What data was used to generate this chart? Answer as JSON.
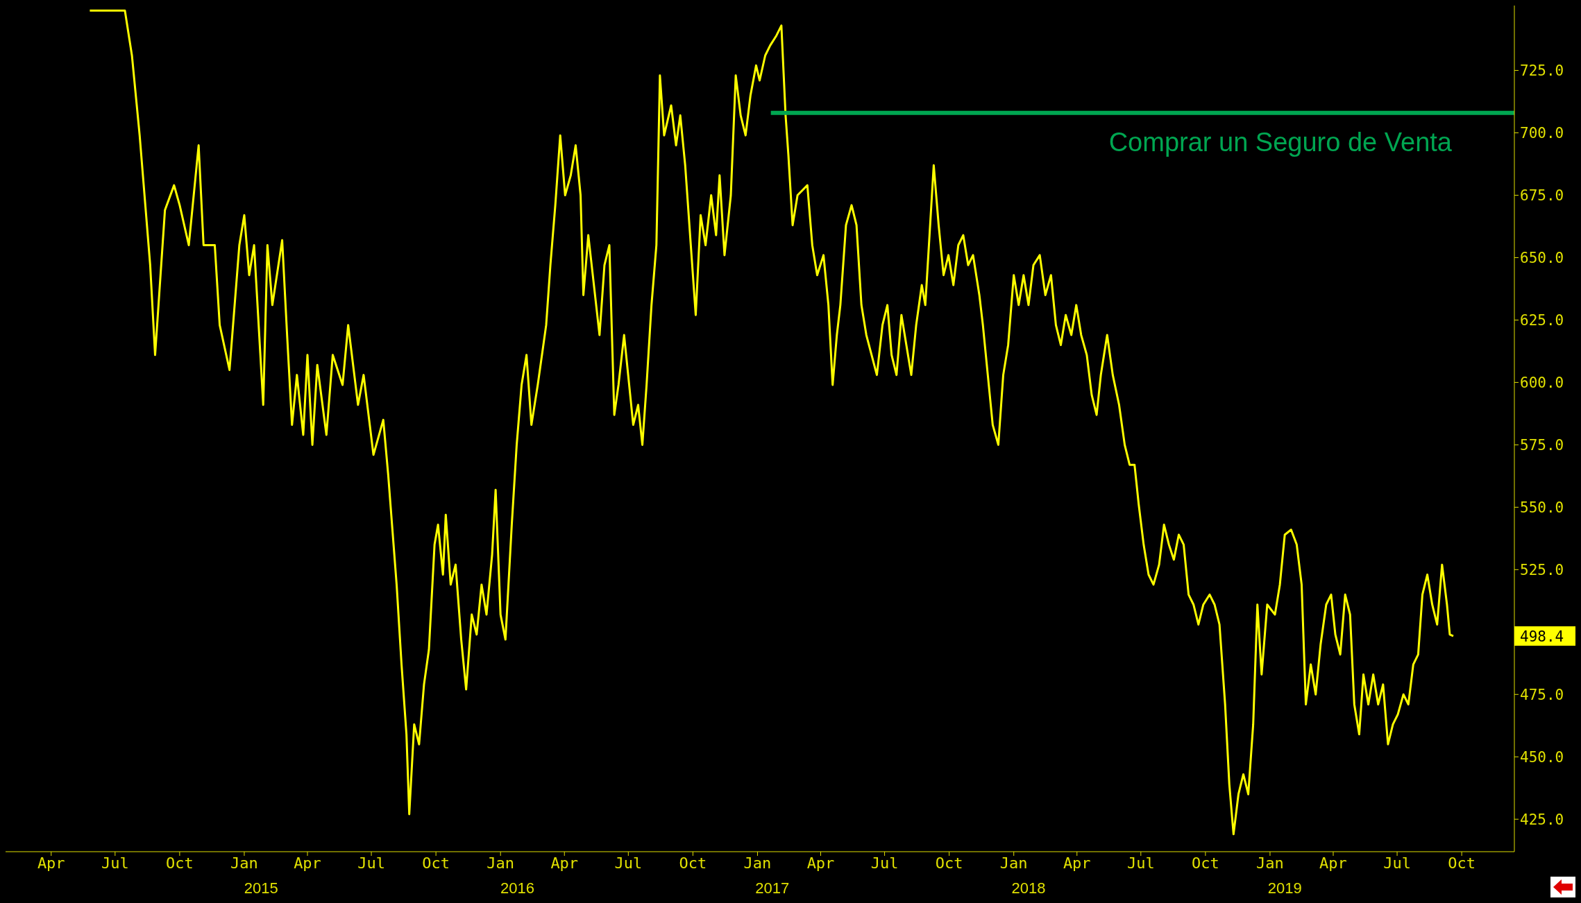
{
  "chart_data": {
    "type": "line",
    "grid": false,
    "legend": false,
    "marker": "none",
    "xlim": [
      "2014-01-26",
      "2019-12-15"
    ],
    "ylim": [
      412,
      751
    ],
    "yticks": [
      {
        "value": 425,
        "label": "425.0"
      },
      {
        "value": 450,
        "label": "450.0"
      },
      {
        "value": 475,
        "label": "475.0"
      },
      {
        "value": 525,
        "label": "525.0"
      },
      {
        "value": 550,
        "label": "550.0"
      },
      {
        "value": 575,
        "label": "575.0"
      },
      {
        "value": 600,
        "label": "600.0"
      },
      {
        "value": 625,
        "label": "625.0"
      },
      {
        "value": 650,
        "label": "650.0"
      },
      {
        "value": 675,
        "label": "675.0"
      },
      {
        "value": 700,
        "label": "700.0"
      },
      {
        "value": 725,
        "label": "725.0"
      }
    ],
    "xticks": [
      {
        "value": "2014-04-01",
        "label": "Apr"
      },
      {
        "value": "2014-07-01",
        "label": "Jul"
      },
      {
        "value": "2014-10-01",
        "label": "Oct"
      },
      {
        "value": "2015-01-01",
        "label": "Jan"
      },
      {
        "value": "2015-04-01",
        "label": "Apr"
      },
      {
        "value": "2015-07-01",
        "label": "Jul"
      },
      {
        "value": "2015-10-01",
        "label": "Oct"
      },
      {
        "value": "2016-01-01",
        "label": "Jan"
      },
      {
        "value": "2016-04-01",
        "label": "Apr"
      },
      {
        "value": "2016-07-01",
        "label": "Jul"
      },
      {
        "value": "2016-10-01",
        "label": "Oct"
      },
      {
        "value": "2017-01-01",
        "label": "Jan"
      },
      {
        "value": "2017-04-01",
        "label": "Apr"
      },
      {
        "value": "2017-07-01",
        "label": "Jul"
      },
      {
        "value": "2017-10-01",
        "label": "Oct"
      },
      {
        "value": "2018-01-01",
        "label": "Jan"
      },
      {
        "value": "2018-04-01",
        "label": "Apr"
      },
      {
        "value": "2018-07-01",
        "label": "Jul"
      },
      {
        "value": "2018-10-01",
        "label": "Oct"
      },
      {
        "value": "2019-01-01",
        "label": "Jan"
      },
      {
        "value": "2019-04-01",
        "label": "Apr"
      },
      {
        "value": "2019-07-01",
        "label": "Jul"
      },
      {
        "value": "2019-10-01",
        "label": "Oct"
      }
    ],
    "x2lim": [
      "2014-01-26",
      "2019-12-15"
    ],
    "x2ticks": [
      {
        "value": "2015-01-25",
        "label": "2015"
      },
      {
        "value": "2016-01-25",
        "label": "2016"
      },
      {
        "value": "2017-01-22",
        "label": "2017"
      },
      {
        "value": "2018-01-22",
        "label": "2018"
      },
      {
        "value": "2019-01-22",
        "label": "2019"
      }
    ],
    "annotations": [
      "498.4"
    ],
    "series": [
      {
        "color": "#ffff00",
        "x": [
          "2014-05-26",
          "2014-07-15",
          "2014-07-25",
          "2014-08-05",
          "2014-08-20",
          "2014-08-27",
          "2014-09-10",
          "2014-09-23",
          "2014-10-01",
          "2014-10-14",
          "2014-10-28",
          "2014-11-04",
          "2014-11-20",
          "2014-11-27",
          "2014-12-11",
          "2014-12-25",
          "2015-01-01",
          "2015-01-08",
          "2015-01-15",
          "2015-01-28",
          "2015-02-03",
          "2015-02-10",
          "2015-02-24",
          "2015-03-03",
          "2015-03-10",
          "2015-03-17",
          "2015-03-26",
          "2015-04-01",
          "2015-04-08",
          "2015-04-15",
          "2015-04-28",
          "2015-05-07",
          "2015-05-21",
          "2015-05-29",
          "2015-06-12",
          "2015-06-20",
          "2015-07-04",
          "2015-07-18",
          "2015-07-25",
          "2015-08-06",
          "2015-08-13",
          "2015-08-20",
          "2015-08-24",
          "2015-08-31",
          "2015-09-07",
          "2015-09-14",
          "2015-09-21",
          "2015-09-29",
          "2015-10-04",
          "2015-10-11",
          "2015-10-15",
          "2015-10-22",
          "2015-10-29",
          "2015-11-06",
          "2015-11-13",
          "2015-11-21",
          "2015-11-28",
          "2015-12-05",
          "2015-12-12",
          "2015-12-20",
          "2015-12-25",
          "2016-01-01",
          "2016-01-08",
          "2016-01-17",
          "2016-01-24",
          "2016-01-31",
          "2016-02-07",
          "2016-02-14",
          "2016-02-23",
          "2016-03-06",
          "2016-03-12",
          "2016-03-19",
          "2016-03-26",
          "2016-04-02",
          "2016-04-10",
          "2016-04-17",
          "2016-04-24",
          "2016-04-28",
          "2016-05-05",
          "2016-05-21",
          "2016-05-28",
          "2016-06-04",
          "2016-06-11",
          "2016-06-17",
          "2016-06-25",
          "2016-07-08",
          "2016-07-15",
          "2016-07-21",
          "2016-07-27",
          "2016-08-03",
          "2016-08-10",
          "2016-08-15",
          "2016-08-21",
          "2016-08-31",
          "2016-09-07",
          "2016-09-13",
          "2016-09-20",
          "2016-09-29",
          "2016-10-05",
          "2016-10-12",
          "2016-10-19",
          "2016-10-27",
          "2016-11-03",
          "2016-11-08",
          "2016-11-15",
          "2016-11-24",
          "2016-12-01",
          "2016-12-08",
          "2016-12-15",
          "2016-12-22",
          "2016-12-30",
          "2017-01-04",
          "2017-01-12",
          "2017-01-19",
          "2017-01-28",
          "2017-02-04",
          "2017-02-10",
          "2017-02-14",
          "2017-02-20",
          "2017-02-27",
          "2017-03-13",
          "2017-03-20",
          "2017-03-27",
          "2017-04-05",
          "2017-04-12",
          "2017-04-18",
          "2017-04-24",
          "2017-04-29",
          "2017-05-07",
          "2017-05-15",
          "2017-05-22",
          "2017-05-29",
          "2017-06-05",
          "2017-06-20",
          "2017-06-28",
          "2017-07-05",
          "2017-07-11",
          "2017-07-18",
          "2017-07-25",
          "2017-08-01",
          "2017-08-08",
          "2017-08-15",
          "2017-08-23",
          "2017-08-28",
          "2017-09-03",
          "2017-09-09",
          "2017-09-16",
          "2017-09-23",
          "2017-09-30",
          "2017-10-07",
          "2017-10-14",
          "2017-10-21",
          "2017-10-28",
          "2017-11-04",
          "2017-11-13",
          "2017-11-18",
          "2017-11-25",
          "2017-12-02",
          "2017-12-10",
          "2017-12-17",
          "2017-12-24",
          "2018-01-01",
          "2018-01-08",
          "2018-01-15",
          "2018-01-22",
          "2018-01-29",
          "2018-02-07",
          "2018-02-15",
          "2018-02-23",
          "2018-03-02",
          "2018-03-09",
          "2018-03-16",
          "2018-03-24",
          "2018-03-31",
          "2018-04-07",
          "2018-04-15",
          "2018-04-22",
          "2018-04-29",
          "2018-05-05",
          "2018-05-14",
          "2018-05-22",
          "2018-05-31",
          "2018-06-08",
          "2018-06-15",
          "2018-06-22",
          "2018-06-28",
          "2018-07-05",
          "2018-07-12",
          "2018-07-19",
          "2018-07-27",
          "2018-08-03",
          "2018-08-10",
          "2018-08-17",
          "2018-08-24",
          "2018-08-31",
          "2018-09-07",
          "2018-09-14",
          "2018-09-21",
          "2018-09-28",
          "2018-10-07",
          "2018-10-14",
          "2018-10-21",
          "2018-10-29",
          "2018-11-04",
          "2018-11-10",
          "2018-11-17",
          "2018-11-24",
          "2018-12-01",
          "2018-12-08",
          "2018-12-14",
          "2018-12-20",
          "2018-12-28",
          "2019-01-08",
          "2019-01-15",
          "2019-01-22",
          "2019-01-31",
          "2019-02-08",
          "2019-02-15",
          "2019-02-21",
          "2019-02-28",
          "2019-03-07",
          "2019-03-14",
          "2019-03-22",
          "2019-03-29",
          "2019-04-04",
          "2019-04-11",
          "2019-04-18",
          "2019-04-25",
          "2019-05-01",
          "2019-05-08",
          "2019-05-14",
          "2019-05-21",
          "2019-05-28",
          "2019-06-04",
          "2019-06-11",
          "2019-06-18",
          "2019-06-25",
          "2019-07-02",
          "2019-07-10",
          "2019-07-17",
          "2019-07-24",
          "2019-07-31",
          "2019-08-06",
          "2019-08-13",
          "2019-08-20",
          "2019-08-27",
          "2019-09-03",
          "2019-09-10",
          "2019-09-14",
          "2019-09-19"
        ],
        "values": [
          749,
          749,
          731,
          699,
          647,
          611,
          669,
          679,
          671,
          655,
          695,
          655,
          655,
          623,
          605,
          655,
          667,
          643,
          655,
          591,
          655,
          631,
          657,
          619,
          583,
          603,
          579,
          611,
          575,
          607,
          579,
          611,
          599,
          623,
          591,
          603,
          571,
          585,
          563,
          519,
          487,
          459,
          427,
          463,
          455,
          479,
          493,
          535,
          543,
          523,
          547,
          519,
          527,
          497,
          477,
          507,
          499,
          519,
          507,
          531,
          557,
          507,
          497,
          543,
          575,
          599,
          611,
          583,
          599,
          623,
          647,
          671,
          699,
          675,
          683,
          695,
          675,
          635,
          659,
          619,
          647,
          655,
          587,
          599,
          619,
          583,
          591,
          575,
          599,
          631,
          655,
          723,
          699,
          711,
          695,
          707,
          687,
          651,
          627,
          667,
          655,
          675,
          659,
          683,
          651,
          675,
          723,
          707,
          699,
          715,
          727,
          721,
          731,
          735,
          739,
          743,
          707,
          691,
          663,
          675,
          679,
          655,
          643,
          651,
          631,
          599,
          619,
          631,
          663,
          671,
          663,
          631,
          619,
          603,
          623,
          631,
          611,
          603,
          627,
          615,
          603,
          623,
          639,
          631,
          659,
          687,
          663,
          643,
          651,
          639,
          655,
          659,
          647,
          651,
          635,
          623,
          603,
          583,
          575,
          603,
          615,
          643,
          631,
          643,
          631,
          647,
          651,
          635,
          643,
          623,
          615,
          627,
          619,
          631,
          619,
          611,
          595,
          587,
          603,
          619,
          603,
          591,
          575,
          567,
          567,
          551,
          535,
          523,
          519,
          527,
          543,
          535,
          529,
          539,
          535,
          515,
          511,
          503,
          511,
          515,
          511,
          503,
          471,
          439,
          419,
          435,
          443,
          435,
          463,
          511,
          483,
          511,
          507,
          519,
          539,
          541,
          535,
          519,
          471,
          487,
          475,
          495,
          511,
          515,
          499,
          491,
          515,
          507,
          471,
          459,
          483,
          471,
          483,
          471,
          479,
          455,
          463,
          467,
          475,
          471,
          487,
          491,
          515,
          523,
          511,
          503,
          527,
          511,
          499,
          498.4
        ]
      },
      {
        "name": "Comprar un Seguro de Venta",
        "color": "#00a651",
        "x": [
          "2017-01-20",
          "2019-12-15"
        ],
        "values": [
          708,
          708
        ]
      }
    ]
  }
}
